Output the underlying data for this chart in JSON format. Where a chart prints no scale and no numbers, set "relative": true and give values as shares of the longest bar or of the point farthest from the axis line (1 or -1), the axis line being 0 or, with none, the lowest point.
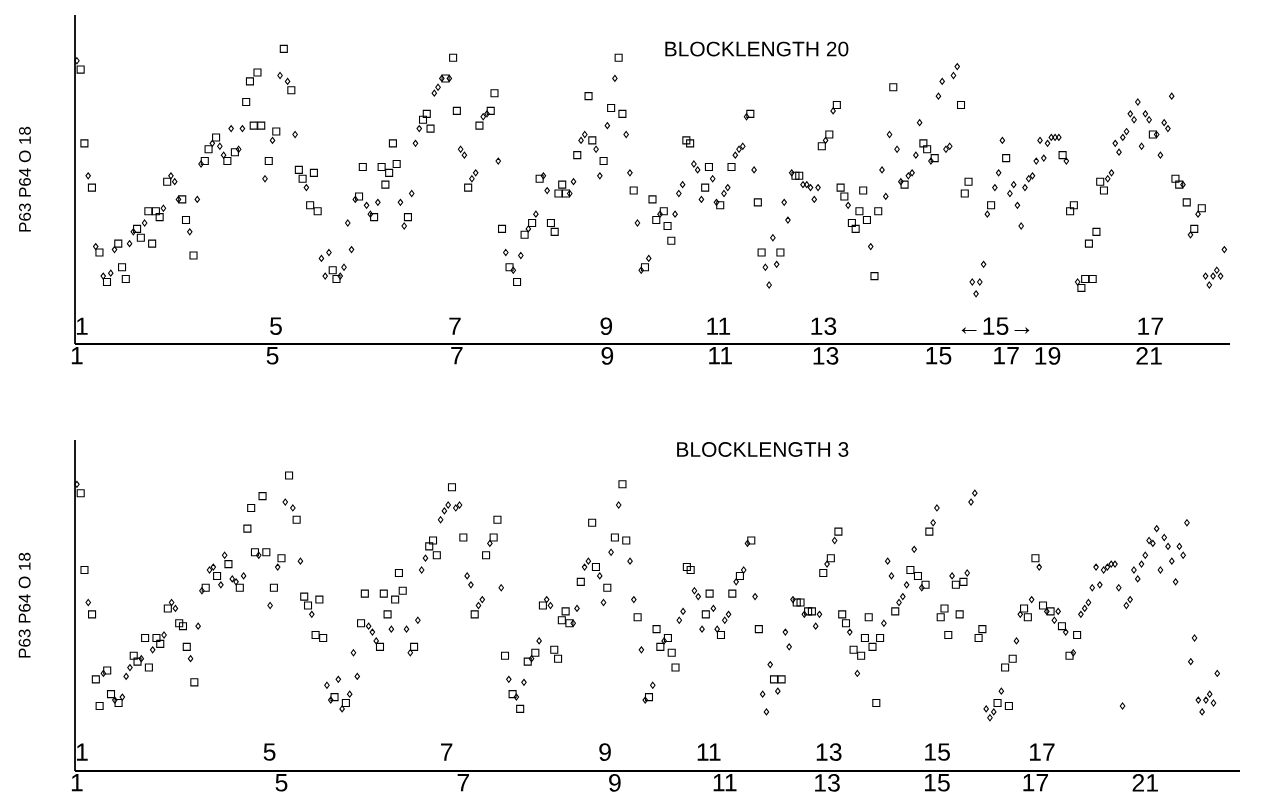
{
  "chart_data": [
    {
      "type": "scatter",
      "relative": true,
      "title": "BLOCKLENGTH 20",
      "ylabel": "P63 P64 O 18",
      "annotations": [
        "1",
        "5",
        "7",
        "9",
        "11",
        "13",
        "←15→",
        "17"
      ],
      "categories": [
        "1",
        null,
        null,
        null,
        null,
        null,
        null,
        null,
        null,
        null,
        null,
        null,
        null,
        null,
        null,
        null,
        null,
        null,
        null,
        null,
        null,
        null,
        null,
        null,
        null,
        null,
        null,
        null,
        null,
        null,
        null,
        null,
        null,
        null,
        null,
        null,
        null,
        null,
        null,
        null,
        null,
        null,
        null,
        null,
        null,
        null,
        null,
        null,
        null,
        null,
        null,
        null,
        "5",
        null,
        null,
        null,
        null,
        null,
        null,
        null,
        null,
        null,
        null,
        null,
        null,
        null,
        null,
        null,
        null,
        null,
        null,
        null,
        null,
        null,
        null,
        null,
        null,
        null,
        null,
        null,
        null,
        null,
        null,
        null,
        null,
        null,
        null,
        null,
        null,
        null,
        null,
        null,
        null,
        null,
        null,
        null,
        null,
        null,
        null,
        null,
        null,
        "7",
        null,
        null,
        null,
        null,
        null,
        null,
        null,
        null,
        null,
        null,
        null,
        null,
        null,
        null,
        null,
        null,
        null,
        null,
        null,
        null,
        null,
        null,
        null,
        null,
        null,
        null,
        null,
        null,
        null,
        null,
        null,
        null,
        null,
        null,
        null,
        null,
        null,
        null,
        null,
        "9",
        null,
        null,
        null,
        null,
        null,
        null,
        null,
        null,
        null,
        null,
        null,
        null,
        null,
        null,
        null,
        null,
        null,
        null,
        null,
        null,
        null,
        null,
        null,
        null,
        null,
        null,
        null,
        null,
        null,
        "11",
        null,
        null,
        null,
        null,
        null,
        null,
        null,
        null,
        null,
        null,
        null,
        null,
        null,
        null,
        null,
        null,
        null,
        null,
        null,
        null,
        null,
        null,
        null,
        null,
        null,
        null,
        null,
        "13",
        null,
        null,
        null,
        null,
        null,
        null,
        null,
        null,
        null,
        null,
        null,
        null,
        null,
        null,
        null,
        null,
        null,
        null,
        null,
        null,
        null,
        null,
        null,
        null,
        null,
        null,
        null,
        null,
        null,
        "15",
        null,
        null,
        null,
        null,
        null,
        null,
        null,
        null,
        null,
        null,
        null,
        null,
        null,
        null,
        null,
        null,
        null,
        "17",
        null,
        null,
        null,
        null,
        null,
        null,
        null,
        null,
        null,
        null,
        "19",
        null,
        null,
        null,
        null,
        null,
        null,
        null,
        null,
        null,
        null,
        null,
        null,
        null,
        null,
        null,
        null,
        null,
        null,
        null,
        null,
        null,
        null,
        null,
        null,
        null,
        null,
        "21",
        null,
        null,
        null,
        null,
        null,
        null,
        null,
        null,
        null,
        null,
        null,
        null,
        null,
        null,
        null,
        null,
        null,
        null,
        null,
        null
      ],
      "series": [
        {
          "color": "#000000",
          "marker": "square",
          "values": [
            null,
            0.93,
            0.68,
            null,
            0.53,
            null,
            0.31,
            null,
            0.21,
            null,
            null,
            0.34,
            0.26,
            0.22,
            null,
            null,
            0.39,
            0.36,
            null,
            0.45,
            0.34,
            0.45,
            0.43,
            null,
            0.55,
            null,
            null,
            null,
            0.49,
            0.42,
            null,
            0.3,
            null,
            null,
            0.62,
            0.66,
            null,
            0.7,
            null,
            null,
            0.62,
            null,
            0.65,
            null,
            null,
            0.82,
            0.89,
            0.74,
            0.92,
            0.74,
            null,
            0.62,
            null,
            0.72,
            null,
            1.0,
            null,
            0.86,
            null,
            0.59,
            0.56,
            null,
            0.47,
            0.58,
            0.45,
            null,
            null,
            null,
            0.25,
            0.22,
            null,
            null,
            null,
            null,
            null,
            0.5,
            0.6,
            null,
            null,
            0.43,
            null,
            0.6,
            0.54,
            0.58,
            0.68,
            0.61,
            null,
            null,
            0.43,
            null,
            null,
            null,
            0.76,
            0.78,
            0.73,
            null,
            null,
            null,
            0.9,
            null,
            0.97,
            0.79,
            null,
            null,
            0.53,
            null,
            null,
            0.74,
            null,
            null,
            0.79,
            0.85,
            null,
            0.39,
            null,
            0.26,
            null,
            0.21,
            null,
            0.37,
            null,
            0.41,
            null,
            0.56,
            null,
            null,
            0.41,
            0.38,
            0.51,
            0.54,
            0.51,
            null,
            null,
            0.64,
            null,
            null,
            0.84,
            0.69,
            null,
            null,
            0.62,
            null,
            0.8,
            null,
            0.97,
            0.78,
            null,
            null,
            0.52,
            null,
            null,
            0.26,
            null,
            0.49,
            0.42,
            null,
            0.45,
            0.4,
            0.35,
            null,
            null,
            null,
            0.69,
            0.68,
            null,
            null,
            null,
            0.53,
            0.6,
            null,
            null,
            0.47,
            null,
            null,
            0.6,
            null,
            null,
            null,
            null,
            0.78,
            null,
            0.48,
            0.31,
            null,
            null,
            null,
            null,
            0.31,
            null,
            null,
            null,
            0.57,
            0.57,
            null,
            null,
            null,
            null,
            null,
            0.67,
            null,
            0.71,
            null,
            0.81,
            0.53,
            0.5,
            null,
            0.41,
            0.39,
            0.45,
            0.52,
            0.42,
            null,
            0.23,
            0.45,
            null,
            null,
            null,
            0.87,
            null,
            null,
            0.54,
            null,
            null,
            null,
            null,
            0.68,
            0.66,
            null,
            0.63,
            null,
            null,
            null,
            null,
            null,
            null,
            0.81,
            0.51,
            0.55,
            null,
            null,
            null,
            null,
            null,
            0.47,
            null,
            null,
            null,
            0.63,
            null,
            null,
            null,
            null,
            null,
            null,
            null,
            null,
            null,
            null,
            null,
            null,
            null,
            null,
            0.64,
            null,
            0.45,
            0.47,
            null,
            0.19,
            0.22,
            0.34,
            0.22,
            0.38,
            0.55,
            0.52,
            null,
            null,
            null,
            null,
            null,
            null,
            null,
            null,
            null,
            null,
            null,
            null,
            0.71,
            null,
            null,
            null,
            null,
            null,
            0.56,
            0.54,
            null,
            0.48,
            null,
            0.39,
            null,
            0.46,
            null,
            null,
            null,
            null,
            null,
            null
          ]
        },
        {
          "color": "#000000",
          "marker": "diamond",
          "values": [
            0.96,
            null,
            null,
            0.57,
            null,
            0.33,
            null,
            0.23,
            null,
            0.24,
            0.32,
            null,
            null,
            null,
            0.34,
            0.38,
            null,
            null,
            0.41,
            null,
            null,
            null,
            null,
            0.46,
            null,
            0.57,
            0.55,
            0.49,
            null,
            null,
            0.38,
            null,
            0.49,
            0.61,
            null,
            null,
            0.68,
            null,
            0.67,
            0.64,
            null,
            0.73,
            null,
            0.66,
            0.73,
            null,
            null,
            null,
            null,
            null,
            0.56,
            null,
            0.69,
            null,
            0.91,
            null,
            0.89,
            null,
            0.71,
            null,
            null,
            0.53,
            null,
            null,
            null,
            0.29,
            0.23,
            0.31,
            null,
            null,
            0.23,
            0.26,
            0.41,
            0.32,
            0.49,
            null,
            null,
            0.47,
            0.44,
            null,
            0.48,
            null,
            null,
            null,
            null,
            null,
            0.48,
            0.4,
            null,
            0.51,
            0.68,
            0.73,
            null,
            null,
            null,
            0.85,
            0.87,
            0.9,
            null,
            0.9,
            null,
            null,
            0.66,
            0.64,
            null,
            0.56,
            0.58,
            null,
            0.77,
            0.78,
            null,
            null,
            0.62,
            null,
            0.31,
            null,
            0.25,
            null,
            0.3,
            null,
            0.39,
            null,
            0.44,
            null,
            0.57,
            0.52,
            null,
            null,
            null,
            null,
            null,
            0.51,
            0.55,
            null,
            0.69,
            0.71,
            null,
            null,
            0.66,
            0.57,
            null,
            0.74,
            null,
            0.9,
            null,
            null,
            0.71,
            0.58,
            null,
            0.41,
            0.25,
            null,
            0.29,
            null,
            null,
            0.44,
            null,
            null,
            null,
            0.44,
            0.51,
            0.54,
            null,
            null,
            0.61,
            0.59,
            0.49,
            null,
            null,
            0.56,
            0.48,
            null,
            0.51,
            0.53,
            null,
            0.64,
            0.66,
            0.67,
            0.77,
            null,
            0.59,
            null,
            null,
            0.26,
            0.2,
            0.36,
            0.27,
            null,
            0.48,
            0.42,
            0.58,
            null,
            null,
            0.54,
            0.54,
            0.53,
            0.49,
            0.53,
            null,
            0.69,
            null,
            0.79,
            null,
            null,
            null,
            0.47,
            null,
            null,
            null,
            null,
            null,
            0.33,
            null,
            null,
            0.59,
            0.5,
            0.71,
            null,
            0.66,
            0.55,
            null,
            0.57,
            0.58,
            0.64,
            0.75,
            null,
            null,
            0.62,
            null,
            0.84,
            0.89,
            0.66,
            0.67,
            0.91,
            0.94,
            null,
            null,
            null,
            0.21,
            0.17,
            0.21,
            0.27,
            0.44,
            null,
            0.53,
            0.58,
            0.69,
            null,
            0.51,
            0.54,
            0.47,
            0.4,
            0.53,
            0.56,
            0.57,
            0.62,
            0.69,
            0.63,
            0.68,
            0.7,
            0.7,
            0.7,
            null,
            0.62,
            null,
            null,
            0.21,
            null,
            null,
            null,
            null,
            null,
            null,
            null,
            0.56,
            0.58,
            0.68,
            0.65,
            0.7,
            0.72,
            0.78,
            0.76,
            0.82,
            0.67,
            0.78,
            0.76,
            null,
            0.71,
            0.64,
            0.75,
            0.73,
            0.84,
            null,
            null,
            0.54,
            null,
            0.37,
            null,
            0.44,
            null,
            0.23,
            0.2,
            0.23,
            0.25,
            0.23,
            0.32
          ]
        }
      ]
    },
    {
      "type": "scatter",
      "relative": true,
      "title": "BLOCKLENGTH 3",
      "ylabel": "P63 P64 O 18",
      "annotations": [
        "1",
        "5",
        "7",
        "9",
        "11",
        "13",
        "15",
        "17"
      ],
      "categories": [
        "1",
        null,
        null,
        null,
        null,
        null,
        null,
        null,
        null,
        null,
        null,
        null,
        null,
        null,
        null,
        null,
        null,
        null,
        null,
        null,
        null,
        null,
        null,
        null,
        null,
        null,
        null,
        null,
        null,
        null,
        null,
        null,
        null,
        null,
        null,
        null,
        null,
        null,
        null,
        null,
        null,
        null,
        null,
        null,
        null,
        null,
        null,
        null,
        null,
        null,
        null,
        null,
        null,
        null,
        "5",
        null,
        null,
        null,
        null,
        null,
        null,
        null,
        null,
        null,
        null,
        null,
        null,
        null,
        null,
        null,
        null,
        null,
        null,
        null,
        null,
        null,
        null,
        null,
        null,
        null,
        null,
        null,
        null,
        null,
        null,
        null,
        null,
        null,
        null,
        null,
        null,
        null,
        null,
        null,
        null,
        null,
        null,
        null,
        null,
        null,
        null,
        null,
        "7",
        null,
        null,
        null,
        null,
        null,
        null,
        null,
        null,
        null,
        null,
        null,
        null,
        null,
        null,
        null,
        null,
        null,
        null,
        null,
        null,
        null,
        null,
        null,
        null,
        null,
        null,
        null,
        null,
        null,
        null,
        null,
        null,
        null,
        null,
        null,
        null,
        null,
        null,
        null,
        "9",
        null,
        null,
        null,
        null,
        null,
        null,
        null,
        null,
        null,
        null,
        null,
        null,
        null,
        null,
        null,
        null,
        null,
        null,
        null,
        null,
        null,
        null,
        null,
        null,
        null,
        null,
        null,
        null,
        "11",
        null,
        null,
        null,
        null,
        null,
        null,
        null,
        null,
        null,
        null,
        null,
        null,
        null,
        null,
        null,
        null,
        null,
        null,
        null,
        null,
        null,
        null,
        null,
        null,
        null,
        null,
        "13",
        null,
        null,
        null,
        null,
        null,
        null,
        null,
        null,
        null,
        null,
        null,
        null,
        null,
        null,
        null,
        null,
        null,
        null,
        null,
        null,
        null,
        null,
        null,
        null,
        null,
        null,
        null,
        null,
        "15",
        null,
        null,
        null,
        null,
        null,
        null,
        null,
        null,
        null,
        null,
        null,
        null,
        null,
        null,
        null,
        null,
        null,
        null,
        null,
        null,
        null,
        null,
        null,
        null,
        null,
        "17",
        null,
        null,
        null,
        null,
        null,
        null,
        null,
        null,
        null,
        null,
        null,
        null,
        null,
        null,
        null,
        null,
        null,
        null,
        null,
        null,
        null,
        null,
        null,
        null,
        null,
        null,
        null,
        null,
        "21",
        null,
        null,
        null,
        null,
        null,
        null,
        null,
        null,
        null,
        null,
        null,
        null,
        null,
        null,
        null,
        null,
        null,
        null,
        null
      ],
      "series": [
        {
          "color": "#000000",
          "marker": "square",
          "values": [
            null,
            0.94,
            0.68,
            null,
            0.53,
            0.31,
            0.22,
            null,
            0.34,
            0.26,
            null,
            0.23,
            null,
            null,
            null,
            0.39,
            0.37,
            null,
            0.45,
            0.35,
            null,
            0.45,
            0.43,
            null,
            0.55,
            null,
            null,
            0.5,
            0.49,
            0.42,
            null,
            0.3,
            null,
            null,
            0.62,
            null,
            null,
            0.66,
            null,
            null,
            0.7,
            null,
            null,
            0.62,
            null,
            0.82,
            0.89,
            0.74,
            null,
            0.93,
            0.74,
            null,
            0.62,
            null,
            0.72,
            null,
            1.0,
            null,
            0.85,
            null,
            0.59,
            0.56,
            null,
            0.46,
            0.58,
            0.45,
            null,
            null,
            0.25,
            null,
            null,
            0.23,
            null,
            null,
            null,
            0.5,
            0.6,
            null,
            null,
            null,
            0.42,
            0.6,
            0.53,
            null,
            0.58,
            0.67,
            0.61,
            null,
            null,
            0.42,
            null,
            null,
            null,
            0.76,
            0.78,
            0.73,
            null,
            null,
            null,
            0.96,
            null,
            null,
            0.79,
            null,
            null,
            0.53,
            null,
            null,
            0.73,
            null,
            0.79,
            0.85,
            null,
            0.39,
            null,
            0.26,
            null,
            0.21,
            null,
            0.37,
            null,
            0.4,
            null,
            0.56,
            null,
            null,
            0.41,
            0.38,
            0.51,
            0.54,
            0.5,
            null,
            null,
            0.64,
            null,
            null,
            0.84,
            0.69,
            null,
            null,
            0.62,
            null,
            0.79,
            null,
            0.97,
            0.78,
            null,
            null,
            0.52,
            null,
            null,
            0.25,
            null,
            0.48,
            0.42,
            null,
            0.45,
            0.4,
            0.35,
            null,
            null,
            0.69,
            0.68,
            null,
            null,
            null,
            0.53,
            0.6,
            null,
            null,
            0.46,
            null,
            null,
            0.6,
            null,
            0.66,
            null,
            null,
            0.78,
            null,
            0.48,
            null,
            null,
            null,
            0.31,
            null,
            0.31,
            null,
            null,
            null,
            0.57,
            0.57,
            null,
            0.54,
            0.54,
            null,
            null,
            0.67,
            null,
            0.72,
            null,
            0.81,
            0.53,
            0.5,
            null,
            0.41,
            null,
            0.39,
            0.45,
            0.52,
            0.42,
            0.23,
            0.45,
            null,
            null,
            null,
            0.54,
            null,
            null,
            null,
            0.68,
            null,
            0.66,
            null,
            0.63,
            0.81,
            null,
            null,
            0.52,
            0.55,
            0.46,
            null,
            0.63,
            0.53,
            0.64,
            null,
            null,
            null,
            0.45,
            0.48,
            null,
            null,
            null,
            0.23,
            null,
            0.35,
            0.22,
            0.38,
            null,
            null,
            0.55,
            0.52,
            null,
            0.72,
            null,
            0.56,
            null,
            0.54,
            null,
            null,
            0.49,
            null,
            0.39,
            null,
            0.46,
            null,
            null,
            null,
            null,
            null,
            null,
            null,
            null,
            null,
            null,
            null,
            null,
            null,
            null,
            null,
            null,
            null,
            null,
            null,
            null,
            null,
            null,
            null,
            null,
            null,
            null,
            null,
            null,
            null,
            null,
            null,
            null,
            null,
            null,
            null,
            null,
            null
          ]
        },
        {
          "color": "#000000",
          "marker": "diamond",
          "values": [
            0.97,
            null,
            null,
            0.57,
            null,
            null,
            null,
            0.33,
            null,
            null,
            0.24,
            null,
            0.25,
            0.32,
            0.35,
            null,
            null,
            0.38,
            null,
            null,
            0.41,
            null,
            null,
            0.46,
            null,
            0.57,
            0.55,
            null,
            null,
            null,
            0.38,
            null,
            0.49,
            0.61,
            null,
            0.68,
            0.69,
            null,
            0.63,
            0.73,
            null,
            0.65,
            0.64,
            null,
            0.66,
            null,
            null,
            null,
            0.73,
            null,
            null,
            0.56,
            null,
            0.69,
            null,
            0.91,
            null,
            0.89,
            null,
            0.71,
            null,
            null,
            0.53,
            null,
            null,
            null,
            0.29,
            0.24,
            null,
            0.31,
            0.21,
            null,
            0.26,
            0.4,
            0.32,
            null,
            null,
            0.49,
            0.47,
            0.44,
            null,
            null,
            null,
            0.48,
            null,
            null,
            null,
            0.48,
            0.4,
            null,
            0.51,
            0.68,
            0.72,
            null,
            null,
            null,
            0.85,
            0.88,
            0.9,
            null,
            0.89,
            0.9,
            null,
            0.66,
            0.63,
            null,
            0.56,
            0.58,
            null,
            0.77,
            null,
            null,
            0.62,
            null,
            0.31,
            null,
            0.25,
            null,
            0.3,
            null,
            0.38,
            null,
            0.44,
            null,
            0.58,
            0.56,
            null,
            null,
            null,
            null,
            null,
            0.5,
            0.55,
            null,
            0.69,
            0.71,
            null,
            null,
            0.66,
            0.57,
            null,
            0.74,
            null,
            0.9,
            null,
            null,
            0.71,
            0.58,
            null,
            0.41,
            0.24,
            null,
            0.29,
            null,
            null,
            0.44,
            null,
            null,
            null,
            0.51,
            0.54,
            null,
            null,
            0.61,
            0.59,
            0.48,
            null,
            null,
            0.55,
            0.48,
            null,
            0.51,
            0.53,
            null,
            0.64,
            null,
            0.68,
            0.77,
            null,
            0.59,
            null,
            0.26,
            0.2,
            0.36,
            null,
            0.27,
            null,
            0.47,
            0.42,
            0.58,
            null,
            null,
            0.53,
            null,
            null,
            0.49,
            0.53,
            null,
            0.7,
            null,
            0.78,
            null,
            null,
            null,
            0.47,
            null,
            0.33,
            null,
            null,
            null,
            null,
            null,
            null,
            0.5,
            0.71,
            0.66,
            null,
            0.57,
            0.59,
            0.63,
            null,
            0.75,
            null,
            0.62,
            null,
            null,
            0.84,
            0.89,
            null,
            null,
            null,
            0.66,
            null,
            null,
            null,
            0.67,
            0.91,
            0.94,
            null,
            null,
            0.21,
            0.18,
            0.2,
            null,
            0.27,
            null,
            null,
            null,
            0.44,
            0.53,
            null,
            null,
            0.58,
            null,
            0.69,
            null,
            0.54,
            null,
            0.51,
            0.54,
            null,
            0.47,
            null,
            0.4,
            null,
            0.53,
            0.55,
            0.57,
            0.62,
            0.69,
            0.63,
            0.68,
            0.69,
            0.7,
            0.7,
            0.62,
            0.22,
            0.56,
            0.58,
            0.68,
            0.65,
            0.7,
            0.73,
            0.78,
            0.77,
            0.82,
            0.68,
            0.79,
            0.76,
            0.71,
            0.64,
            0.76,
            0.73,
            0.84,
            0.37,
            0.45,
            0.24,
            0.2,
            0.24,
            0.26,
            0.23,
            0.33
          ]
        }
      ]
    }
  ]
}
